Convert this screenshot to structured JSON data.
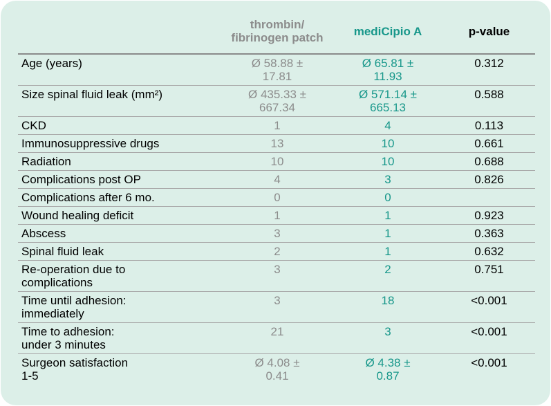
{
  "table": {
    "header": [
      "thrombin/\nfibrinogen patch",
      "mediCipio A",
      "p-value"
    ],
    "rows": [
      {
        "label": "Age (years)",
        "a": "Ø 58.88 ±\n17.81",
        "b": "Ø 65.81 ±\n11.93",
        "p": "0.312"
      },
      {
        "label": "Size spinal fluid leak (mm²)",
        "a": "Ø 435.33 ±\n667.34",
        "b": "Ø 571.14 ±\n665.13",
        "p": "0.588"
      },
      {
        "label": "CKD",
        "a": "1",
        "b": "4",
        "p": "0.113"
      },
      {
        "label": "Immunosuppressive drugs",
        "a": "13",
        "b": "10",
        "p": "0.661"
      },
      {
        "label": "Radiation",
        "a": "10",
        "b": "10",
        "p": "0.688"
      },
      {
        "label": "Complications post OP",
        "a": "4",
        "b": "3",
        "p": "0.826"
      },
      {
        "label": "Complications after 6 mo.",
        "a": "0",
        "b": "0"
      },
      {
        "label": "Wound healing deficit",
        "a": "1",
        "b": "1",
        "p": "0.923"
      },
      {
        "label": "Abscess",
        "a": "3",
        "b": "1",
        "p": "0.363"
      },
      {
        "label": "Spinal fluid leak",
        "a": "2",
        "b": "1",
        "p": "0.632"
      },
      {
        "label": "Re-operation due to\ncomplications",
        "a": "3",
        "b": "2",
        "p": "0.751"
      },
      {
        "label": "Time until adhesion:\nimmediately",
        "a": "3",
        "b": "18",
        "p": "<0.001"
      },
      {
        "label": "Time to adhesion:\nunder 3 minutes",
        "a": "21",
        "b": "3",
        "p": "<0.001"
      },
      {
        "label": "Surgeon satisfaction\n1-5",
        "a": "Ø 4.08 ±\n0.41",
        "b": "Ø 4.38 ±\n0.87",
        "p": "<0.001"
      }
    ]
  }
}
